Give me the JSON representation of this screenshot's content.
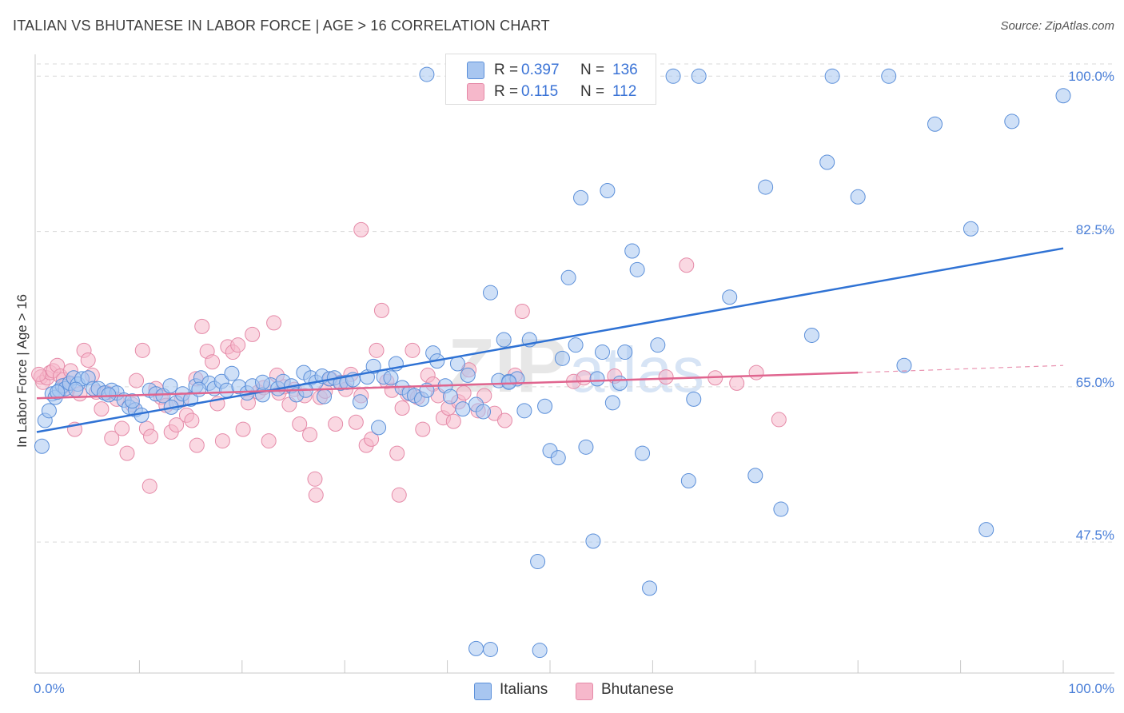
{
  "title": "ITALIAN VS BHUTANESE IN LABOR FORCE | AGE > 16 CORRELATION CHART",
  "source": "Source: ZipAtlas.com",
  "colors": {
    "italians_fill": "#a8c6f0",
    "italians_stroke": "#5b8fd9",
    "italians_line": "#2f72d4",
    "bhutanese_fill": "#f6b8cb",
    "bhutanese_stroke": "#e58aa8",
    "bhutanese_line": "#e0658f",
    "tick_text": "#4a7fd8"
  },
  "legend": {
    "rows": [
      {
        "r_label": "R =",
        "r_value": "0.397",
        "n_label": "N =",
        "n_value": "136"
      },
      {
        "r_label": "R =",
        "r_value": "0.115",
        "n_label": "N =",
        "n_value": "112"
      }
    ]
  },
  "bottom_legend": {
    "italians": "Italians",
    "bhutanese": "Bhutanese"
  },
  "watermark": "ZIPatlas",
  "chart_data": {
    "type": "scatter",
    "title": "ITALIAN VS BHUTANESE IN LABOR FORCE | AGE > 16 CORRELATION CHART",
    "xlabel": "",
    "ylabel": "In Labor Force | Age > 16",
    "xlim": [
      0,
      100
    ],
    "ylim": [
      34,
      103
    ],
    "x_tick_labels": [
      "0.0%",
      "100.0%"
    ],
    "y_ticks": [
      47.5,
      65.0,
      82.5,
      100.0
    ],
    "y_tick_labels": [
      "47.5%",
      "65.0%",
      "82.5%",
      "100.0%"
    ],
    "grid": true,
    "legend_position": "top-center",
    "series": [
      {
        "name": "Italians",
        "R": 0.397,
        "N": 136,
        "trend": {
          "x": [
            0,
            100
          ],
          "y": [
            59.9,
            80.6
          ]
        },
        "points": [
          [
            0.5,
            58.3
          ],
          [
            0.8,
            61.2
          ],
          [
            1.2,
            62.3
          ],
          [
            1.5,
            64.2
          ],
          [
            1.8,
            63.8
          ],
          [
            2.2,
            64.6
          ],
          [
            2.5,
            65.1
          ],
          [
            2.8,
            64.8
          ],
          [
            3.2,
            65.4
          ],
          [
            3.6,
            66.0
          ],
          [
            4.0,
            65.3
          ],
          [
            4.4,
            65.9
          ],
          [
            5.0,
            66.0
          ],
          [
            5.5,
            64.8
          ],
          [
            6.0,
            64.8
          ],
          [
            6.6,
            64.3
          ],
          [
            7.3,
            64.6
          ],
          [
            7.8,
            64.3
          ],
          [
            8.5,
            63.5
          ],
          [
            9.0,
            62.7
          ],
          [
            9.6,
            62.4
          ],
          [
            10.2,
            61.8
          ],
          [
            11.0,
            64.6
          ],
          [
            11.6,
            64.2
          ],
          [
            12.3,
            64.0
          ],
          [
            13.0,
            65.1
          ],
          [
            13.6,
            63.2
          ],
          [
            14.2,
            64.2
          ],
          [
            15.0,
            63.6
          ],
          [
            15.5,
            65.1
          ],
          [
            16.0,
            66.0
          ],
          [
            16.8,
            65.4
          ],
          [
            17.3,
            64.8
          ],
          [
            18.0,
            65.6
          ],
          [
            18.5,
            64.6
          ],
          [
            19.0,
            66.5
          ],
          [
            19.7,
            65.0
          ],
          [
            20.5,
            64.3
          ],
          [
            21.0,
            65.1
          ],
          [
            22.0,
            64.1
          ],
          [
            22.8,
            65.2
          ],
          [
            23.5,
            64.8
          ],
          [
            24.0,
            65.6
          ],
          [
            24.8,
            65.1
          ],
          [
            25.3,
            64.1
          ],
          [
            26.0,
            66.6
          ],
          [
            26.7,
            66.0
          ],
          [
            27.2,
            65.5
          ],
          [
            27.8,
            66.2
          ],
          [
            28.5,
            65.9
          ],
          [
            29.0,
            66.0
          ],
          [
            29.6,
            65.4
          ],
          [
            30.2,
            65.5
          ],
          [
            30.8,
            65.8
          ],
          [
            31.5,
            63.3
          ],
          [
            32.2,
            66.1
          ],
          [
            32.8,
            67.3
          ],
          [
            33.3,
            60.4
          ],
          [
            33.8,
            66.1
          ],
          [
            34.5,
            66.0
          ],
          [
            35.0,
            67.6
          ],
          [
            35.6,
            64.9
          ],
          [
            36.3,
            64.3
          ],
          [
            36.8,
            64.0
          ],
          [
            37.5,
            63.6
          ],
          [
            38.0,
            64.6
          ],
          [
            38.6,
            68.8
          ],
          [
            39.0,
            67.9
          ],
          [
            39.8,
            65.1
          ],
          [
            40.3,
            63.9
          ],
          [
            41.0,
            67.6
          ],
          [
            41.5,
            62.5
          ],
          [
            42.0,
            66.3
          ],
          [
            42.8,
            63.0
          ],
          [
            43.5,
            62.2
          ],
          [
            44.2,
            75.6
          ],
          [
            45.0,
            65.7
          ],
          [
            45.5,
            70.3
          ],
          [
            46.0,
            65.6
          ],
          [
            46.8,
            65.9
          ],
          [
            47.5,
            62.3
          ],
          [
            48.0,
            70.3
          ],
          [
            48.8,
            45.3
          ],
          [
            49.5,
            62.8
          ],
          [
            50.0,
            57.8
          ],
          [
            50.8,
            57.0
          ],
          [
            51.2,
            68.2
          ],
          [
            51.8,
            77.3
          ],
          [
            52.5,
            69.7
          ],
          [
            53.0,
            86.3
          ],
          [
            53.5,
            58.2
          ],
          [
            54.2,
            47.6
          ],
          [
            54.6,
            65.9
          ],
          [
            55.1,
            68.9
          ],
          [
            55.6,
            87.1
          ],
          [
            56.1,
            63.2
          ],
          [
            56.8,
            65.4
          ],
          [
            57.3,
            68.9
          ],
          [
            58.0,
            80.3
          ],
          [
            58.5,
            78.2
          ],
          [
            59.0,
            57.5
          ],
          [
            59.7,
            42.3
          ],
          [
            60.5,
            69.7
          ],
          [
            62.0,
            100.0
          ],
          [
            63.5,
            54.4
          ],
          [
            64.0,
            63.6
          ],
          [
            64.5,
            100.0
          ],
          [
            67.5,
            75.1
          ],
          [
            70.0,
            55.0
          ],
          [
            71.0,
            87.5
          ],
          [
            72.5,
            51.2
          ],
          [
            75.5,
            70.8
          ],
          [
            77.0,
            90.3
          ],
          [
            77.5,
            100.0
          ],
          [
            80.0,
            86.4
          ],
          [
            83.0,
            100.0
          ],
          [
            84.5,
            67.4
          ],
          [
            87.5,
            94.6
          ],
          [
            91.0,
            82.8
          ],
          [
            92.5,
            48.9
          ],
          [
            95.0,
            94.9
          ],
          [
            100.0,
            97.8
          ],
          [
            44.2,
            35.4
          ],
          [
            49.0,
            35.3
          ],
          [
            42.8,
            35.5
          ],
          [
            38.0,
            100.2
          ],
          [
            28.0,
            63.9
          ],
          [
            22.0,
            65.5
          ],
          [
            15.8,
            64.7
          ],
          [
            13.1,
            62.7
          ],
          [
            9.3,
            63.4
          ],
          [
            7.0,
            64.1
          ],
          [
            2.0,
            64.4
          ],
          [
            3.8,
            64.7
          ],
          [
            26.2,
            64.6
          ],
          [
            46.0,
            65.5
          ]
        ]
      },
      {
        "name": "Bhutanese",
        "R": 0.115,
        "N": 112,
        "trend": {
          "x": [
            0,
            80
          ],
          "y": [
            63.7,
            66.6
          ]
        },
        "trend_extension": {
          "x": [
            80,
            100
          ],
          "y": [
            66.6,
            67.4
          ]
        },
        "points": [
          [
            0.4,
            66.1
          ],
          [
            0.6,
            65.5
          ],
          [
            1.0,
            66.0
          ],
          [
            1.3,
            66.6
          ],
          [
            1.6,
            66.8
          ],
          [
            2.0,
            67.4
          ],
          [
            2.3,
            66.2
          ],
          [
            2.6,
            65.8
          ],
          [
            3.0,
            64.6
          ],
          [
            3.3,
            66.8
          ],
          [
            3.7,
            60.2
          ],
          [
            4.2,
            64.2
          ],
          [
            4.6,
            69.1
          ],
          [
            5.0,
            68.0
          ],
          [
            5.4,
            66.3
          ],
          [
            5.8,
            64.4
          ],
          [
            6.3,
            62.5
          ],
          [
            6.8,
            64.3
          ],
          [
            7.3,
            59.2
          ],
          [
            7.8,
            63.6
          ],
          [
            8.3,
            60.3
          ],
          [
            8.8,
            57.5
          ],
          [
            9.3,
            63.0
          ],
          [
            9.7,
            65.7
          ],
          [
            10.3,
            69.1
          ],
          [
            10.7,
            60.3
          ],
          [
            11.1,
            59.4
          ],
          [
            11.6,
            64.8
          ],
          [
            12.1,
            63.8
          ],
          [
            12.6,
            62.9
          ],
          [
            13.1,
            59.9
          ],
          [
            13.6,
            60.7
          ],
          [
            14.1,
            63.5
          ],
          [
            14.6,
            61.8
          ],
          [
            15.1,
            61.2
          ],
          [
            15.6,
            58.4
          ],
          [
            16.1,
            71.8
          ],
          [
            16.6,
            69.0
          ],
          [
            17.1,
            67.8
          ],
          [
            17.6,
            63.1
          ],
          [
            18.1,
            58.9
          ],
          [
            18.6,
            69.5
          ],
          [
            19.1,
            68.9
          ],
          [
            19.6,
            69.7
          ],
          [
            20.1,
            60.2
          ],
          [
            20.6,
            63.2
          ],
          [
            21.0,
            70.9
          ],
          [
            21.6,
            64.4
          ],
          [
            22.1,
            64.9
          ],
          [
            22.6,
            58.9
          ],
          [
            23.1,
            72.2
          ],
          [
            23.6,
            64.3
          ],
          [
            24.1,
            65.0
          ],
          [
            24.6,
            63.0
          ],
          [
            25.1,
            64.7
          ],
          [
            25.6,
            60.8
          ],
          [
            26.1,
            64.0
          ],
          [
            26.6,
            59.6
          ],
          [
            27.1,
            54.6
          ],
          [
            27.6,
            63.8
          ],
          [
            28.1,
            64.5
          ],
          [
            28.6,
            65.9
          ],
          [
            29.1,
            60.8
          ],
          [
            29.6,
            65.5
          ],
          [
            30.1,
            64.7
          ],
          [
            30.6,
            66.4
          ],
          [
            31.1,
            61.0
          ],
          [
            31.6,
            64.0
          ],
          [
            32.1,
            58.4
          ],
          [
            32.6,
            59.1
          ],
          [
            33.1,
            69.1
          ],
          [
            33.6,
            73.6
          ],
          [
            34.1,
            65.6
          ],
          [
            34.6,
            64.6
          ],
          [
            35.1,
            57.5
          ],
          [
            35.6,
            62.6
          ],
          [
            36.1,
            64.2
          ],
          [
            36.6,
            69.1
          ],
          [
            37.1,
            63.8
          ],
          [
            37.6,
            60.2
          ],
          [
            38.1,
            66.3
          ],
          [
            38.6,
            65.3
          ],
          [
            39.1,
            64.0
          ],
          [
            39.6,
            61.5
          ],
          [
            40.1,
            62.6
          ],
          [
            40.6,
            61.1
          ],
          [
            41.1,
            63.3
          ],
          [
            41.6,
            64.3
          ],
          [
            42.1,
            66.9
          ],
          [
            43.0,
            62.3
          ],
          [
            43.6,
            64.0
          ],
          [
            44.6,
            62.0
          ],
          [
            45.6,
            61.2
          ],
          [
            46.6,
            66.3
          ],
          [
            47.3,
            73.5
          ],
          [
            52.3,
            65.6
          ],
          [
            53.3,
            66.0
          ],
          [
            56.3,
            66.2
          ],
          [
            61.3,
            66.1
          ],
          [
            63.3,
            78.7
          ],
          [
            66.1,
            66.0
          ],
          [
            68.2,
            65.4
          ],
          [
            70.1,
            66.6
          ],
          [
            72.3,
            61.3
          ],
          [
            27.2,
            52.8
          ],
          [
            35.3,
            52.8
          ],
          [
            11.0,
            53.8
          ],
          [
            31.6,
            82.7
          ],
          [
            23.4,
            66.3
          ],
          [
            15.5,
            65.9
          ],
          [
            2.8,
            65.2
          ],
          [
            0.2,
            66.4
          ]
        ]
      }
    ]
  }
}
